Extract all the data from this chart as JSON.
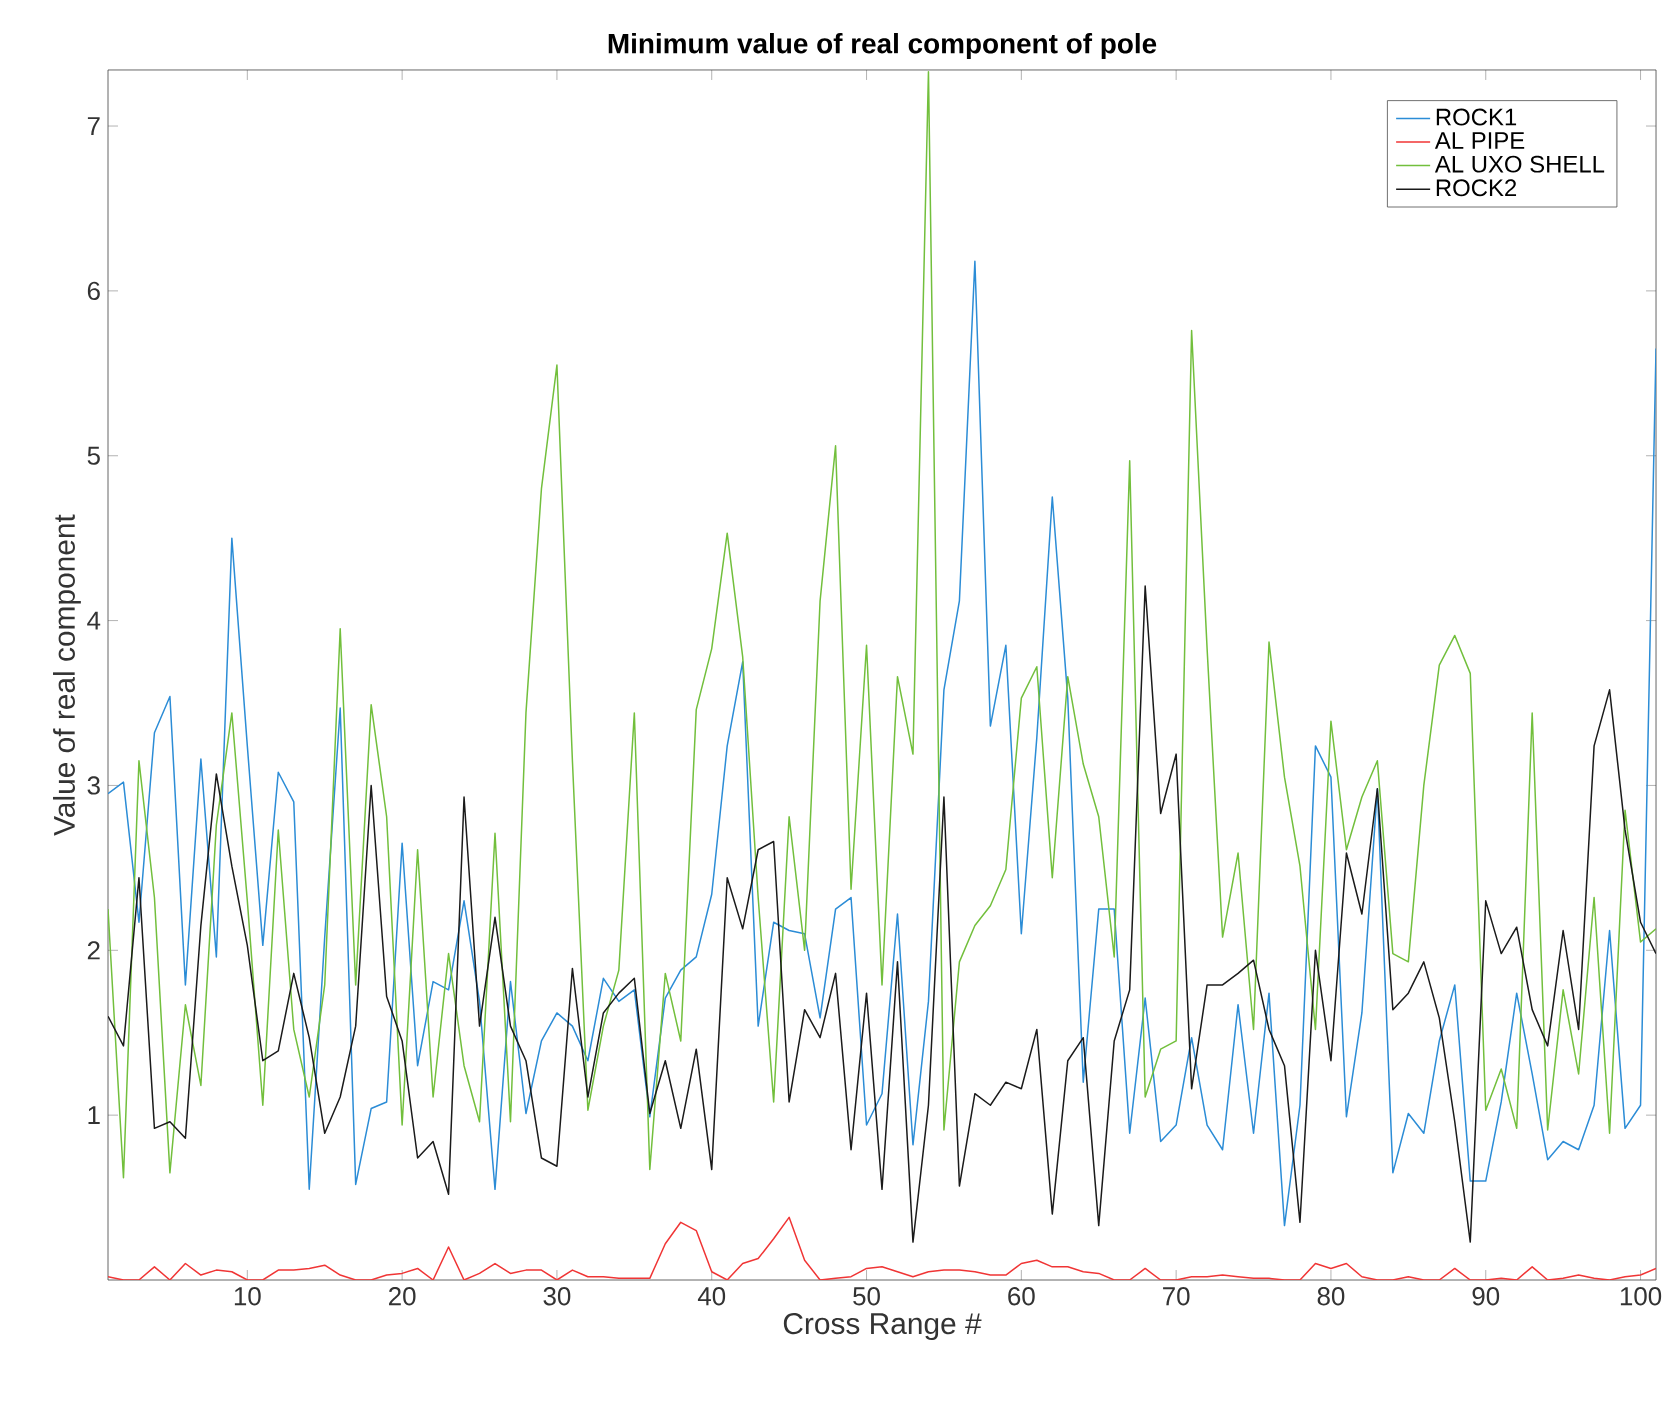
{
  "chart_data": {
    "type": "line",
    "title": "Minimum value of real component of pole",
    "xlabel": "Cross Range #",
    "ylabel": "Value of real component",
    "x": [
      1,
      2,
      3,
      4,
      5,
      6,
      7,
      8,
      9,
      10,
      11,
      12,
      13,
      14,
      15,
      16,
      17,
      18,
      19,
      20,
      21,
      22,
      23,
      24,
      25,
      26,
      27,
      28,
      29,
      30,
      31,
      32,
      33,
      34,
      35,
      36,
      37,
      38,
      39,
      40,
      41,
      42,
      43,
      44,
      45,
      46,
      47,
      48,
      49,
      50,
      51,
      52,
      53,
      54,
      55,
      56,
      57,
      58,
      59,
      60,
      61,
      62,
      63,
      64,
      65,
      66,
      67,
      68,
      69,
      70,
      71,
      72,
      73,
      74,
      75,
      76,
      77,
      78,
      79,
      80,
      81,
      82,
      83,
      84,
      85,
      86,
      87,
      88,
      89,
      90,
      91,
      92,
      93,
      94,
      95,
      96,
      97,
      98,
      99,
      100,
      101
    ],
    "xlim": [
      1,
      101
    ],
    "xticks": [
      10,
      20,
      30,
      40,
      50,
      60,
      70,
      80,
      90,
      100
    ],
    "ylim": [
      0,
      7.34
    ],
    "yticks": [
      1,
      2,
      3,
      4,
      5,
      6,
      7
    ],
    "legend": "top right",
    "grid": false,
    "line_style": "solid",
    "series": [
      {
        "name": "ROCK1",
        "color": "#2b8cd6",
        "values": [
          2.95,
          3.02,
          2.17,
          3.32,
          3.54,
          1.79,
          3.16,
          1.96,
          4.5,
          3.24,
          2.03,
          3.08,
          2.9,
          0.55,
          2.08,
          3.47,
          0.58,
          1.04,
          1.08,
          2.65,
          1.3,
          1.81,
          1.76,
          2.3,
          1.69,
          0.55,
          1.81,
          1.01,
          1.45,
          1.62,
          1.54,
          1.33,
          1.83,
          1.69,
          1.76,
          0.99,
          1.71,
          1.88,
          1.96,
          2.34,
          3.24,
          3.75,
          1.54,
          2.17,
          2.12,
          2.1,
          1.59,
          2.25,
          2.32,
          0.94,
          1.13,
          2.22,
          0.82,
          1.69,
          3.58,
          4.12,
          6.18,
          3.36,
          3.85,
          2.1,
          3.29,
          4.75,
          3.53,
          1.2,
          2.25,
          2.25,
          0.89,
          1.71,
          0.84,
          0.94,
          1.47,
          0.94,
          0.79,
          1.67,
          0.89,
          1.74,
          0.33,
          1.06,
          3.24,
          3.05,
          0.99,
          1.62,
          2.98,
          0.65,
          1.01,
          0.89,
          1.45,
          1.79,
          0.6,
          0.6,
          1.08,
          1.74,
          1.25,
          0.73,
          0.84,
          0.79,
          1.06,
          2.12,
          0.92,
          1.06,
          5.65
        ]
      },
      {
        "name": "AL PIPE",
        "color": "#f03535",
        "values": [
          0.02,
          0.0,
          0.0,
          0.08,
          0.0,
          0.1,
          0.03,
          0.06,
          0.05,
          0.0,
          0.0,
          0.06,
          0.06,
          0.07,
          0.09,
          0.03,
          0.0,
          0.0,
          0.03,
          0.04,
          0.07,
          0.0,
          0.2,
          0.0,
          0.04,
          0.1,
          0.04,
          0.06,
          0.06,
          0.0,
          0.06,
          0.02,
          0.02,
          0.01,
          0.01,
          0.01,
          0.22,
          0.35,
          0.3,
          0.05,
          0.0,
          0.1,
          0.13,
          0.25,
          0.38,
          0.12,
          0.0,
          0.01,
          0.02,
          0.07,
          0.08,
          0.05,
          0.02,
          0.05,
          0.06,
          0.06,
          0.05,
          0.03,
          0.03,
          0.1,
          0.12,
          0.08,
          0.08,
          0.05,
          0.04,
          0.0,
          0.0,
          0.07,
          0.0,
          0.0,
          0.02,
          0.02,
          0.03,
          0.02,
          0.01,
          0.01,
          0.0,
          0.0,
          0.1,
          0.07,
          0.1,
          0.02,
          0.0,
          0.0,
          0.02,
          0.0,
          0.0,
          0.07,
          0.0,
          0.0,
          0.01,
          0.0,
          0.08,
          0.0,
          0.01,
          0.03,
          0.01,
          0.0,
          0.02,
          0.03,
          0.07
        ]
      },
      {
        "name": "AL UXO SHELL",
        "color": "#72bf3c",
        "values": [
          2.25,
          0.62,
          3.15,
          2.32,
          0.65,
          1.67,
          1.18,
          2.76,
          3.44,
          2.3,
          1.06,
          2.73,
          1.52,
          1.11,
          1.79,
          3.95,
          1.79,
          3.49,
          2.81,
          0.94,
          2.61,
          1.11,
          1.98,
          1.3,
          0.96,
          2.71,
          0.96,
          3.44,
          4.8,
          5.55,
          3.15,
          1.03,
          1.54,
          1.88,
          3.44,
          0.67,
          1.86,
          1.45,
          3.46,
          3.83,
          4.53,
          3.78,
          2.32,
          1.08,
          2.81,
          2.0,
          4.12,
          5.06,
          2.37,
          3.85,
          1.79,
          3.66,
          3.19,
          7.33,
          0.91,
          1.93,
          2.15,
          2.27,
          2.49,
          3.53,
          3.72,
          2.44,
          3.66,
          3.13,
          2.81,
          1.96,
          4.97,
          1.11,
          1.4,
          1.45,
          5.76,
          3.83,
          2.08,
          2.59,
          1.52,
          3.87,
          3.05,
          2.51,
          1.52,
          3.39,
          2.61,
          2.93,
          3.15,
          1.98,
          1.93,
          3.0,
          3.73,
          3.91,
          3.68,
          1.03,
          1.28,
          0.92,
          3.44,
          0.91,
          1.76,
          1.25,
          2.32,
          0.89,
          2.85,
          2.05,
          2.13
        ]
      },
      {
        "name": "ROCK2",
        "color": "#1a1a1a",
        "values": [
          1.6,
          1.42,
          2.44,
          0.92,
          0.96,
          0.86,
          2.15,
          3.07,
          2.51,
          2.03,
          1.33,
          1.39,
          1.86,
          1.47,
          0.89,
          1.11,
          1.54,
          3.0,
          1.72,
          1.45,
          0.74,
          0.84,
          0.52,
          2.93,
          1.54,
          2.2,
          1.54,
          1.33,
          0.74,
          0.69,
          1.89,
          1.11,
          1.62,
          1.74,
          1.83,
          1.01,
          1.33,
          0.92,
          1.4,
          0.67,
          2.44,
          2.13,
          2.61,
          2.66,
          1.08,
          1.64,
          1.47,
          1.86,
          0.79,
          1.74,
          0.55,
          1.93,
          0.23,
          1.06,
          2.93,
          0.57,
          1.13,
          1.06,
          1.2,
          1.16,
          1.52,
          0.4,
          1.33,
          1.47,
          0.33,
          1.45,
          1.76,
          4.21,
          2.83,
          3.19,
          1.16,
          1.79,
          1.79,
          1.86,
          1.94,
          1.52,
          1.3,
          0.35,
          2.0,
          1.33,
          2.59,
          2.22,
          2.98,
          1.64,
          1.74,
          1.93,
          1.59,
          0.96,
          0.23,
          2.3,
          1.98,
          2.14,
          1.64,
          1.42,
          2.12,
          1.52,
          3.24,
          3.58,
          2.73,
          2.17,
          1.98
        ]
      }
    ]
  }
}
